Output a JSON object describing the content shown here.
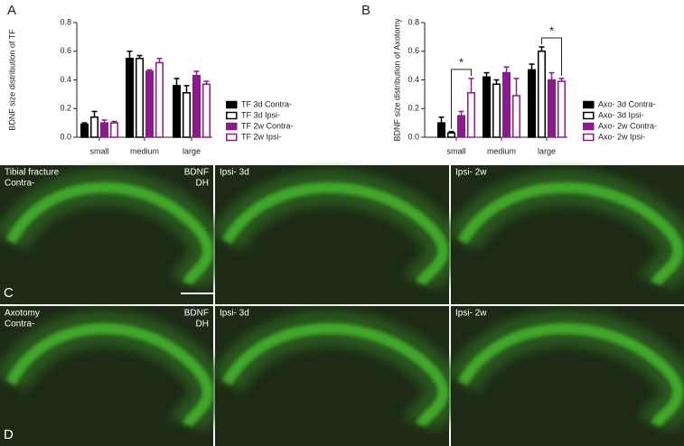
{
  "chart_data": [
    {
      "type": "bar",
      "ylabel": "BDNF size distribution of TF",
      "categories": [
        "small",
        "medium",
        "large"
      ],
      "series": [
        {
          "name": "TF 3d Contra-",
          "color": "#000000",
          "filled": true,
          "values": [
            0.09,
            0.55,
            0.36
          ],
          "errors": [
            0.01,
            0.05,
            0.05
          ]
        },
        {
          "name": "TF 3d Ipsi-",
          "color": "#000000",
          "filled": false,
          "values": [
            0.14,
            0.55,
            0.31
          ],
          "errors": [
            0.04,
            0.02,
            0.05
          ]
        },
        {
          "name": "TF 2w Contra-",
          "color": "#8b1a8b",
          "filled": true,
          "values": [
            0.1,
            0.46,
            0.43
          ],
          "errors": [
            0.02,
            0.01,
            0.03
          ]
        },
        {
          "name": "TF 2w Ipsi-",
          "color": "#8b1a8b",
          "filled": false,
          "values": [
            0.1,
            0.52,
            0.37
          ],
          "errors": [
            0.01,
            0.03,
            0.02
          ]
        }
      ],
      "ylim": [
        0,
        0.8
      ],
      "yticks": [
        {
          "value": 0,
          "label": "0.0"
        },
        0.2,
        0.4,
        0.6,
        0.8
      ]
    },
    {
      "type": "bar",
      "ylabel": "BDNF size distribution of Axotomy",
      "categories": [
        "small",
        "medium",
        "large"
      ],
      "series": [
        {
          "name": "Axo- 3d Contra-",
          "color": "#000000",
          "filled": true,
          "values": [
            0.1,
            0.42,
            0.47
          ],
          "errors": [
            0.04,
            0.03,
            0.04
          ]
        },
        {
          "name": "Axo- 3d Ipsi-",
          "color": "#000000",
          "filled": false,
          "values": [
            0.03,
            0.37,
            0.6
          ],
          "errors": [
            0.01,
            0.03,
            0.03
          ]
        },
        {
          "name": "Axo- 2w Contra-",
          "color": "#8b1a8b",
          "filled": true,
          "values": [
            0.15,
            0.45,
            0.4
          ],
          "errors": [
            0.03,
            0.04,
            0.05
          ]
        },
        {
          "name": "Axo- 2w Ipsi-",
          "color": "#8b1a8b",
          "filled": false,
          "values": [
            0.31,
            0.29,
            0.39
          ],
          "errors": [
            0.1,
            0.12,
            0.02
          ]
        }
      ],
      "ylim": [
        0,
        0.8
      ],
      "yticks": [
        {
          "value": 0,
          "label": "0.0"
        },
        0.2,
        0.4,
        0.6,
        0.8
      ],
      "annotations": [
        {
          "text": "*",
          "category": "small",
          "between": [
            "Axo- 3d Ipsi-",
            "Axo- 2w Ipsi-"
          ]
        },
        {
          "text": "*",
          "category": "large",
          "between": [
            "Axo- 3d Ipsi-",
            "Axo- 2w Ipsi-"
          ]
        }
      ]
    }
  ],
  "figure": {
    "chart_letters": [
      "A",
      "B"
    ],
    "image_rows": [
      {
        "letter": "C",
        "condition": "Tibial fracture",
        "side": "Contra-",
        "stain": "BDNF",
        "region": "DH",
        "columns": [
          "Ipsi- 3d",
          "Ipsi- 2w"
        ]
      },
      {
        "letter": "D",
        "condition": "Axotomy",
        "side": "Contra-",
        "stain": "BDNF",
        "region": "DH",
        "columns": [
          "Ipsi- 3d",
          "Ipsi- 2w"
        ]
      }
    ]
  }
}
